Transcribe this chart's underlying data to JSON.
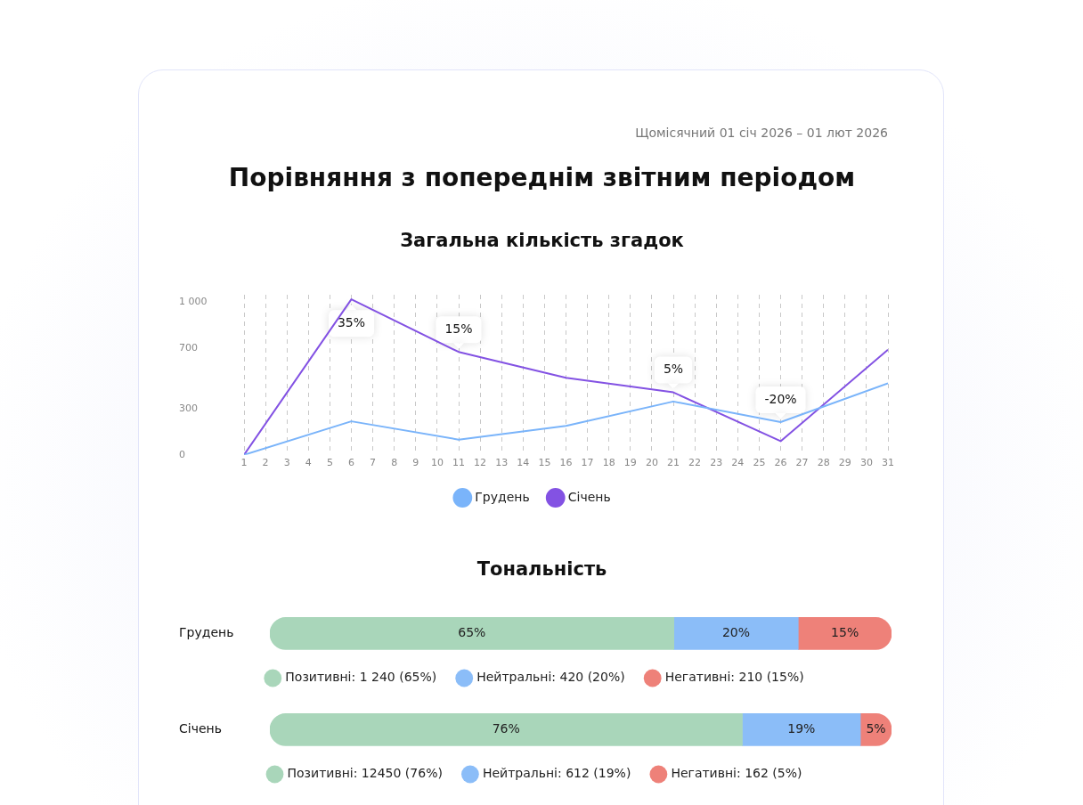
{
  "chart_data": [
    {
      "type": "other",
      "title": "Порівняння з попереднім звітним періодом",
      "subtitle": "Щомісячний 01 січ 2026 – 01 лют 2026"
    },
    {
      "type": "line",
      "title": "Загальна кількість згадок",
      "xlim": [
        1,
        31
      ],
      "xticks": [
        1,
        2,
        3,
        4,
        5,
        6,
        7,
        8,
        9,
        10,
        11,
        12,
        13,
        14,
        15,
        16,
        17,
        18,
        19,
        20,
        21,
        22,
        23,
        24,
        25,
        26,
        27,
        28,
        29,
        30,
        31
      ],
      "ylim": [
        0,
        1050
      ],
      "yticks": [
        0,
        300,
        700,
        {
          "value": 1000,
          "label": "1 000"
        }
      ],
      "grid": "x",
      "legend": "bottom",
      "marker": "none",
      "line_style": "solid",
      "series": [
        {
          "name": "Грудень",
          "color": "#7ab4fa",
          "x": [
            1,
            6,
            11,
            16,
            21,
            26,
            31
          ],
          "values": [
            0,
            220,
            100,
            190,
            350,
            215,
            470
          ]
        },
        {
          "name": "Січень",
          "color": "#8352e3",
          "x": [
            1,
            6,
            11,
            16,
            21,
            26,
            31
          ],
          "values": [
            0,
            1020,
            675,
            505,
            410,
            90,
            690
          ]
        }
      ],
      "annotations": [
        {
          "text": "35%",
          "x": 6,
          "y": 1020
        },
        {
          "text": "15%",
          "x": 11,
          "y": 675
        },
        {
          "text": "5%",
          "x": 21,
          "y": 410
        },
        {
          "text": "-20%",
          "x": 26,
          "y": 90
        }
      ]
    },
    {
      "type": "bar",
      "title": "Тональність",
      "orientation": "horizontal",
      "stacked": true,
      "categories": [
        "Грудень"
      ],
      "xlim": [
        0,
        100
      ],
      "tick_labels": "y",
      "legend": "bottom",
      "series": [
        {
          "name": "Позитивні: 1 240 (65%)",
          "color": "#a9d6ba",
          "values": [
            65
          ],
          "value_labels": [
            "65%"
          ]
        },
        {
          "name": "Нейтральні: 420 (20%)",
          "color": "#8bbdf8",
          "values": [
            20
          ],
          "value_labels": [
            "20%"
          ]
        },
        {
          "name": "Негативні: 210 (15%)",
          "color": "#ee8179",
          "values": [
            15
          ],
          "value_labels": [
            "15%"
          ]
        }
      ]
    },
    {
      "type": "bar",
      "orientation": "horizontal",
      "stacked": true,
      "categories": [
        "Січень"
      ],
      "xlim": [
        0,
        100
      ],
      "tick_labels": "y",
      "legend": "bottom",
      "series": [
        {
          "name": "Позитивні: 12450 (76%)",
          "color": "#a9d6ba",
          "values": [
            76
          ],
          "value_labels": [
            "76%"
          ]
        },
        {
          "name": "Нейтральні: 612 (19%)",
          "color": "#8bbdf8",
          "values": [
            19
          ],
          "value_labels": [
            "19%"
          ]
        },
        {
          "name": "Негативні: 162 (5%)",
          "color": "#ee8179",
          "values": [
            5
          ],
          "value_labels": [
            "5%"
          ]
        }
      ]
    }
  ]
}
